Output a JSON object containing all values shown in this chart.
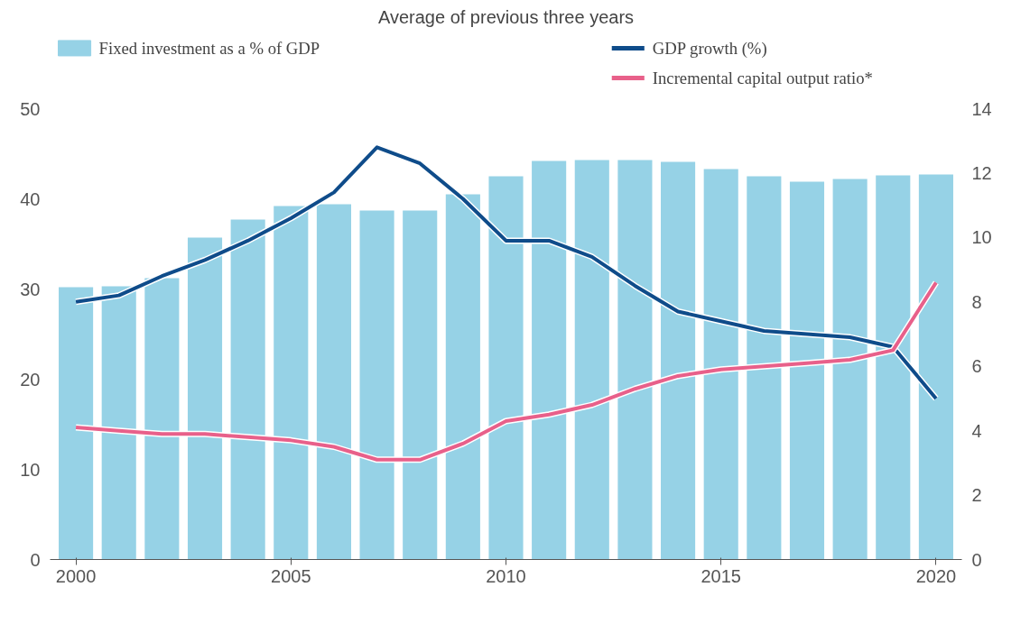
{
  "chart_data": {
    "type": "bar",
    "title": "Average of previous three years",
    "x": [
      2000,
      2001,
      2002,
      2003,
      2004,
      2005,
      2006,
      2007,
      2008,
      2009,
      2010,
      2011,
      2012,
      2013,
      2014,
      2015,
      2016,
      2017,
      2018,
      2019,
      2020
    ],
    "series": [
      {
        "name": "Fixed investment as a % of GDP",
        "color": "#96d2e6",
        "values": [
          30.2,
          30.3,
          31.2,
          35.7,
          37.7,
          39.2,
          39.4,
          38.7,
          38.7,
          40.5,
          42.5,
          44.2,
          44.3,
          44.3,
          44.1,
          43.3,
          42.5,
          41.9,
          42.2,
          42.6,
          42.7
        ]
      },
      {
        "name": "GDP growth (%)",
        "type": "line",
        "axis": "y2",
        "color": "#0f4c8a",
        "values": [
          8.0,
          8.2,
          8.8,
          9.3,
          9.9,
          10.6,
          11.4,
          12.8,
          12.3,
          11.2,
          9.9,
          9.9,
          9.4,
          8.5,
          7.7,
          7.4,
          7.1,
          7.0,
          6.9,
          6.6,
          5.0
        ]
      },
      {
        "name": "Incremental capital output ratio*",
        "type": "line",
        "axis": "y2",
        "color": "#e8608a",
        "values": [
          4.1,
          4.0,
          3.9,
          3.9,
          3.8,
          3.7,
          3.5,
          3.1,
          3.1,
          3.6,
          4.3,
          4.5,
          4.8,
          5.3,
          5.7,
          5.9,
          6.0,
          6.1,
          6.2,
          6.5,
          8.6
        ]
      }
    ],
    "xlim": [
      1999.4,
      2020.6
    ],
    "xticks": [
      2000,
      2005,
      2010,
      2015,
      2020
    ],
    "ylim": [
      0,
      50
    ],
    "yticks": [
      0,
      10,
      20,
      30,
      40,
      50
    ],
    "y2lim": [
      0,
      14
    ],
    "y2ticks": [
      0,
      2,
      4,
      6,
      8,
      10,
      12,
      14
    ],
    "grid": false,
    "legend": "top"
  }
}
